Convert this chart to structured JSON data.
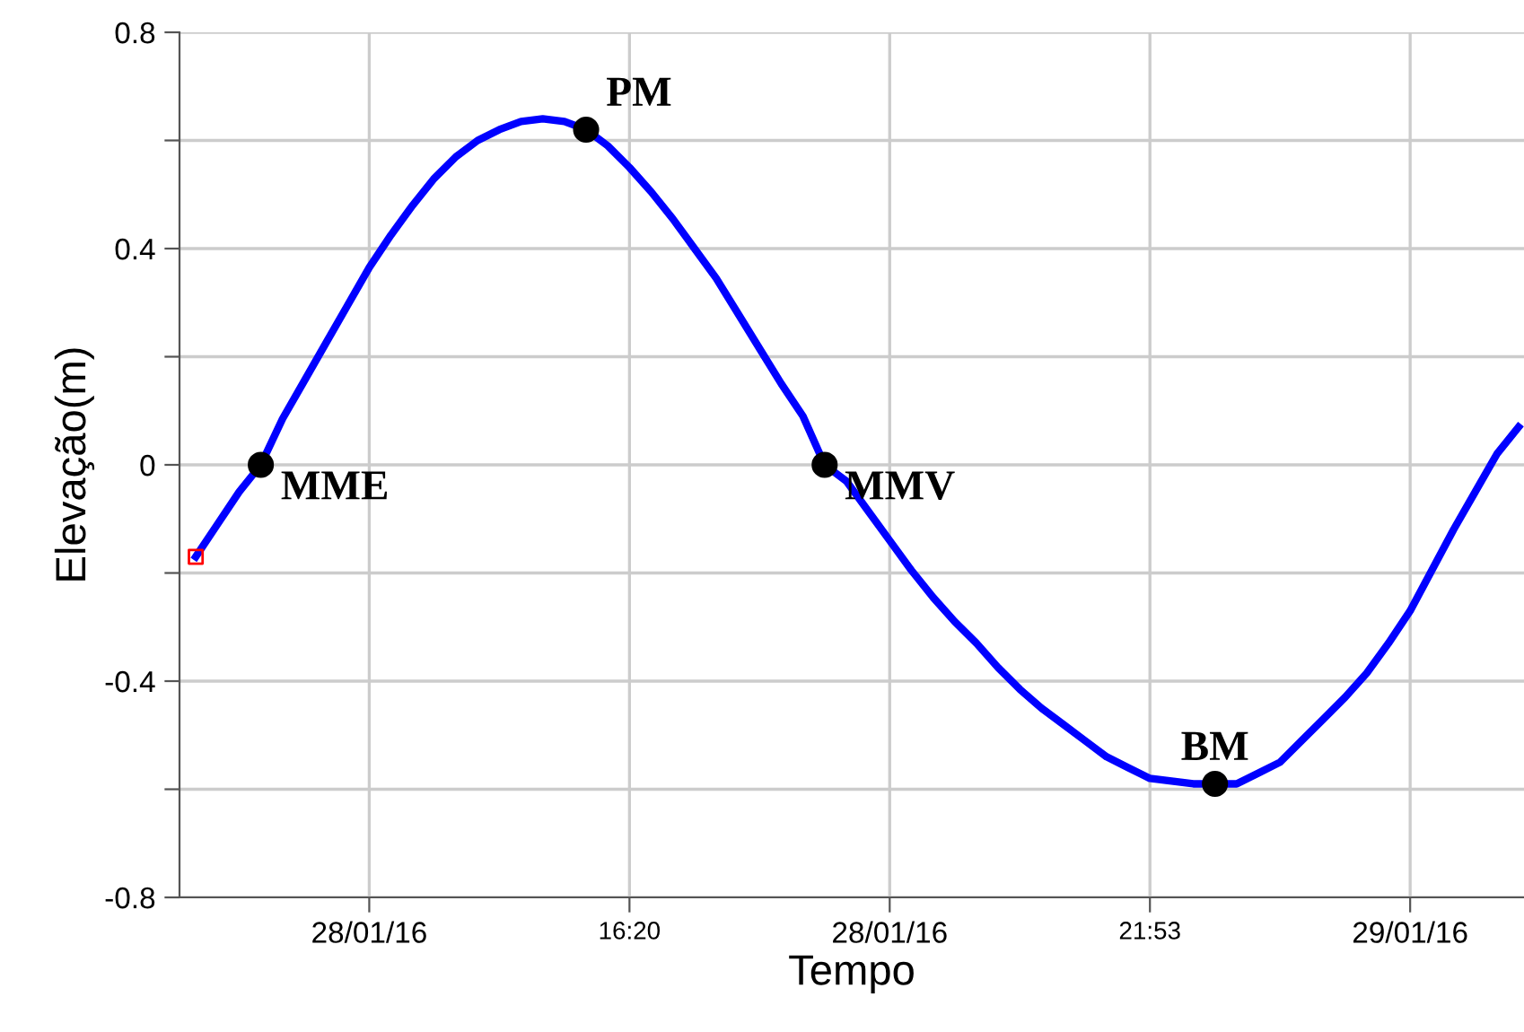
{
  "chart_data": {
    "type": "line",
    "xlabel": "Tempo",
    "ylabel": "Elevação(m)",
    "categories": [
      null,
      null,
      null,
      null,
      null,
      null,
      null,
      null,
      "28/01/16",
      null,
      null,
      null,
      null,
      null,
      null,
      null,
      null,
      null,
      null,
      null,
      "16:20",
      null,
      null,
      null,
      null,
      null,
      null,
      null,
      null,
      null,
      null,
      null,
      "28/01/16",
      null,
      null,
      null,
      null,
      null,
      null,
      null,
      null,
      null,
      null,
      null,
      "21:53",
      null,
      null,
      null,
      null,
      null,
      null,
      null,
      null,
      null,
      null,
      null,
      "29/01/16",
      null,
      null,
      null,
      null,
      null
    ],
    "ylim": [
      -0.8,
      0.8
    ],
    "yticks": [
      {
        "value": -0.8,
        "label": "-0.8"
      },
      {
        "value": -0.6,
        "label": null
      },
      {
        "value": -0.4,
        "label": "-0.4"
      },
      {
        "value": -0.2,
        "label": null
      },
      {
        "value": 0,
        "label": "0"
      },
      {
        "value": 0.2,
        "label": null
      },
      {
        "value": 0.4,
        "label": "0.4"
      },
      {
        "value": 0.6,
        "label": null
      },
      {
        "value": 0.8,
        "label": "0.8"
      }
    ],
    "grid": true,
    "series": [
      {
        "color": "#0000ff",
        "marker": "none",
        "line_style": "solid",
        "values": [
          -0.17,
          -0.11,
          -0.05,
          0,
          0.085,
          0.155,
          0.225,
          0.295,
          0.365,
          0.425,
          0.48,
          0.53,
          0.57,
          0.6,
          0.62,
          0.635,
          0.64,
          0.635,
          0.62,
          0.59,
          0.55,
          0.505,
          0.455,
          0.4,
          0.345,
          0.28,
          0.215,
          0.15,
          0.09,
          0,
          -0.03,
          -0.085,
          -0.14,
          -0.195,
          -0.245,
          -0.29,
          -0.33,
          -0.375,
          -0.415,
          -0.45,
          -0.48,
          -0.51,
          -0.54,
          -0.56,
          -0.58,
          -0.585,
          -0.59,
          -0.59,
          -0.59,
          -0.57,
          -0.55,
          -0.51,
          -0.47,
          -0.43,
          -0.385,
          -0.33,
          -0.27,
          -0.195,
          -0.12,
          -0.05,
          0.02,
          0.07
        ]
      },
      {
        "type": "scatter",
        "color": "#000000",
        "marker": "circle",
        "values": [
          null,
          null,
          null,
          0,
          null,
          null,
          null,
          null,
          null,
          null,
          null,
          null,
          null,
          null,
          null,
          null,
          null,
          null,
          0.62,
          null,
          null,
          null,
          null,
          null,
          null,
          null,
          null,
          null,
          null,
          0,
          null,
          null,
          null,
          null,
          null,
          null,
          null,
          null,
          null,
          null,
          null,
          null,
          null,
          null,
          null,
          null,
          null,
          -0.59,
          null,
          null,
          null,
          null,
          null,
          null,
          null,
          null,
          null,
          null,
          null,
          null,
          null,
          null
        ]
      },
      {
        "type": "scatter",
        "color": "#ff0000",
        "marker": "square",
        "values": [
          -0.17,
          null,
          null,
          null,
          null,
          null,
          null,
          null,
          null,
          null,
          null,
          null,
          null,
          null,
          null,
          null,
          null,
          null,
          null,
          null,
          null,
          null,
          null,
          null,
          null,
          null,
          null,
          null,
          null,
          null,
          null,
          null,
          null,
          null,
          null,
          null,
          null,
          null,
          null,
          null,
          null,
          null,
          null,
          null,
          null,
          null,
          null,
          null,
          null,
          null,
          null,
          null,
          null,
          null,
          null,
          null,
          null,
          null,
          null,
          null,
          null,
          null
        ]
      }
    ],
    "annotations": [
      "MME",
      "PM",
      "MMV",
      "BM"
    ]
  }
}
